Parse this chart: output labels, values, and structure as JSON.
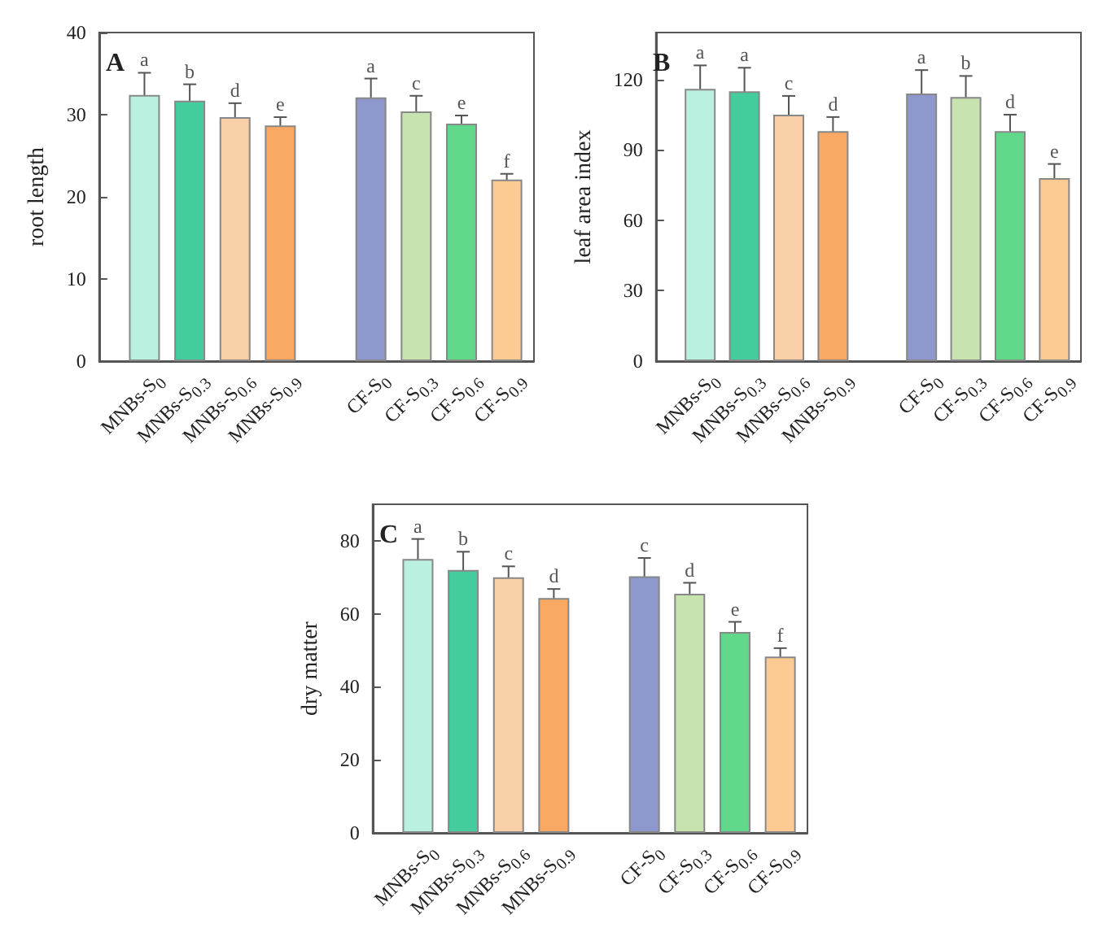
{
  "chart_data": [
    {
      "type": "bar",
      "title": "A",
      "ylabel": "root length",
      "categories": [
        "MNBs-S$_{0}$",
        "MNBs-S$_{0.3}$",
        "MNBs-S$_{0.6}$",
        "MNBs-S$_{0.9}$",
        null,
        "CF-S$_{0}$",
        "CF-S$_{0.3}$",
        "CF-S$_{0.6}$",
        "CF-S$_{0.9}$"
      ],
      "values": [
        32.4,
        31.7,
        29.7,
        28.7,
        null,
        32.1,
        30.4,
        28.9,
        22.1
      ],
      "errors": [
        2.7,
        2.0,
        1.7,
        1.0,
        null,
        2.3,
        1.9,
        1.0,
        0.7
      ],
      "value_labels": [
        "a",
        "b",
        "d",
        "e",
        null,
        "a",
        "c",
        "e",
        "f"
      ],
      "colors": [
        "#b9f0df",
        "#45cc9c",
        "#f8cfa6",
        "#f9a964",
        "#cccccc",
        "#8f98cc",
        "#c8e3b0",
        "#62d88a",
        "#fccb93"
      ],
      "ylim": [
        0,
        40
      ],
      "yticks": [
        0,
        10,
        20,
        30,
        40
      ],
      "grid": false
    },
    {
      "type": "bar",
      "title": "B",
      "ylabel": "leaf area index",
      "categories": [
        "MNBs-S$_{0}$",
        "MNBs-S$_{0.3}$",
        "MNBs-S$_{0.6}$",
        "MNBs-S$_{0.9}$",
        null,
        "CF-S$_{0}$",
        "CF-S$_{0.3}$",
        "CF-S$_{0.6}$",
        "CF-S$_{0.9}$"
      ],
      "values": [
        116,
        115,
        105,
        98,
        null,
        114,
        112.5,
        98,
        78
      ],
      "errors": [
        10,
        10,
        8,
        6,
        null,
        10,
        9,
        7,
        6
      ],
      "value_labels": [
        "a",
        "a",
        "c",
        "d",
        null,
        "a",
        "b",
        "d",
        "e"
      ],
      "colors": [
        "#b9f0df",
        "#45cc9c",
        "#f8cfa6",
        "#f9a964",
        "#cccccc",
        "#8f98cc",
        "#c8e3b0",
        "#62d88a",
        "#fccb93"
      ],
      "ylim": [
        0,
        140
      ],
      "yticks": [
        0,
        30,
        60,
        90,
        120
      ],
      "grid": false
    },
    {
      "type": "bar",
      "title": "C",
      "ylabel": "dry matter",
      "categories": [
        "MNBs-S$_{0}$",
        "MNBs-S$_{0.3}$",
        "MNBs-S$_{0.6}$",
        "MNBs-S$_{0.9}$",
        null,
        "CF-S$_{0}$",
        "CF-S$_{0.3}$",
        "CF-S$_{0.6}$",
        "CF-S$_{0.9}$"
      ],
      "values": [
        75,
        72,
        70,
        64.3,
        null,
        70.3,
        65.5,
        55,
        48.3
      ],
      "errors": [
        5.5,
        5,
        3,
        2.5,
        null,
        5,
        3,
        2.8,
        2.3
      ],
      "value_labels": [
        "a",
        "b",
        "c",
        "d",
        null,
        "c",
        "d",
        "e",
        "f"
      ],
      "colors": [
        "#b9f0df",
        "#45cc9c",
        "#f8cfa6",
        "#f9a964",
        "#cccccc",
        "#8f98cc",
        "#c8e3b0",
        "#62d88a",
        "#fccb93"
      ],
      "ylim": [
        0,
        90
      ],
      "yticks": [
        0,
        20,
        40,
        60,
        80
      ],
      "grid": false
    }
  ]
}
